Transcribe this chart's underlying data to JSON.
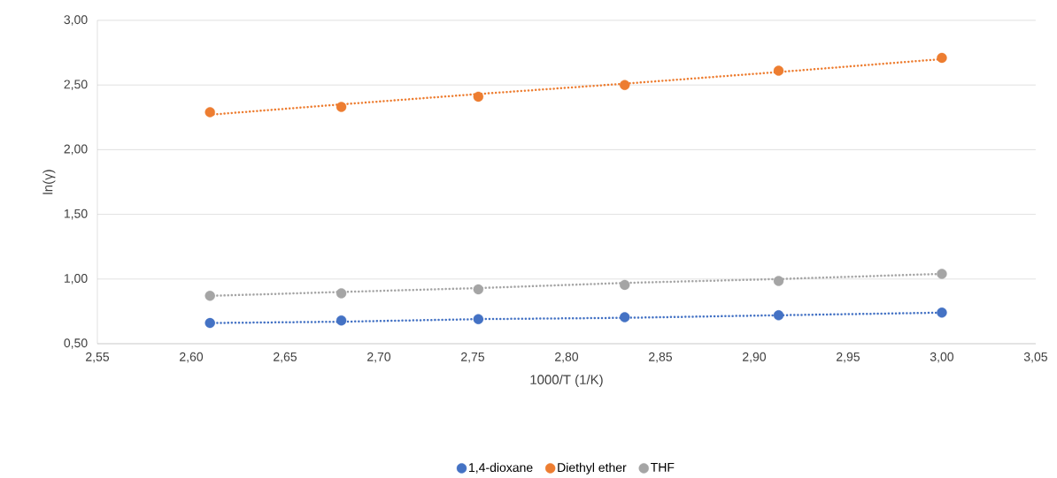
{
  "chart_data": {
    "type": "scatter",
    "xlabel": "1000/T (1/K)",
    "ylabel": "ln(γ)",
    "xlim": [
      2.55,
      3.05
    ],
    "xticks": [
      {
        "value": 2.55,
        "label": "2,55"
      },
      {
        "value": 2.6,
        "label": "2,60"
      },
      {
        "value": 2.65,
        "label": "2,65"
      },
      {
        "value": 2.7,
        "label": "2,70"
      },
      {
        "value": 2.75,
        "label": "2,75"
      },
      {
        "value": 2.8,
        "label": "2,80"
      },
      {
        "value": 2.85,
        "label": "2,85"
      },
      {
        "value": 2.9,
        "label": "2,90"
      },
      {
        "value": 2.95,
        "label": "2,95"
      },
      {
        "value": 3.0,
        "label": "3,00"
      },
      {
        "value": 3.05,
        "label": "3,05"
      }
    ],
    "ylim": [
      0.5,
      3.0
    ],
    "yticks": [
      {
        "value": 0.5,
        "label": "0,50"
      },
      {
        "value": 1.0,
        "label": "1,00"
      },
      {
        "value": 1.5,
        "label": "1,50"
      },
      {
        "value": 2.0,
        "label": "2,00"
      },
      {
        "value": 2.5,
        "label": "2,50"
      },
      {
        "value": 3.0,
        "label": "3,00"
      }
    ],
    "x": [
      2.61,
      2.68,
      2.753,
      2.831,
      2.913,
      3.0
    ],
    "grid": "y",
    "legend": "bottom",
    "marker": "circle",
    "series": [
      {
        "name": "1,4-dioxane",
        "color": "#4472c4",
        "values": [
          0.66,
          0.68,
          0.69,
          0.705,
          0.72,
          0.74
        ]
      },
      {
        "name": "Diethyl ether",
        "color": "#ed7d31",
        "values": [
          2.29,
          2.33,
          2.41,
          2.5,
          2.61,
          2.71
        ]
      },
      {
        "name": "THF",
        "color": "#a5a5a5",
        "values": [
          0.87,
          0.89,
          0.92,
          0.955,
          0.985,
          1.04
        ]
      },
      {
        "type": "line",
        "color": "#4472c4",
        "values": [
          0.66,
          0.67,
          0.69,
          0.7,
          0.72,
          0.74
        ],
        "line_style": "dotted",
        "marker": "none"
      },
      {
        "type": "line",
        "color": "#ed7d31",
        "values": [
          2.27,
          2.35,
          2.43,
          2.51,
          2.6,
          2.7
        ],
        "line_style": "dotted",
        "marker": "none"
      },
      {
        "type": "line",
        "color": "#a5a5a5",
        "values": [
          0.87,
          0.9,
          0.93,
          0.97,
          1.0,
          1.04
        ],
        "line_style": "dotted",
        "marker": "none"
      }
    ]
  }
}
